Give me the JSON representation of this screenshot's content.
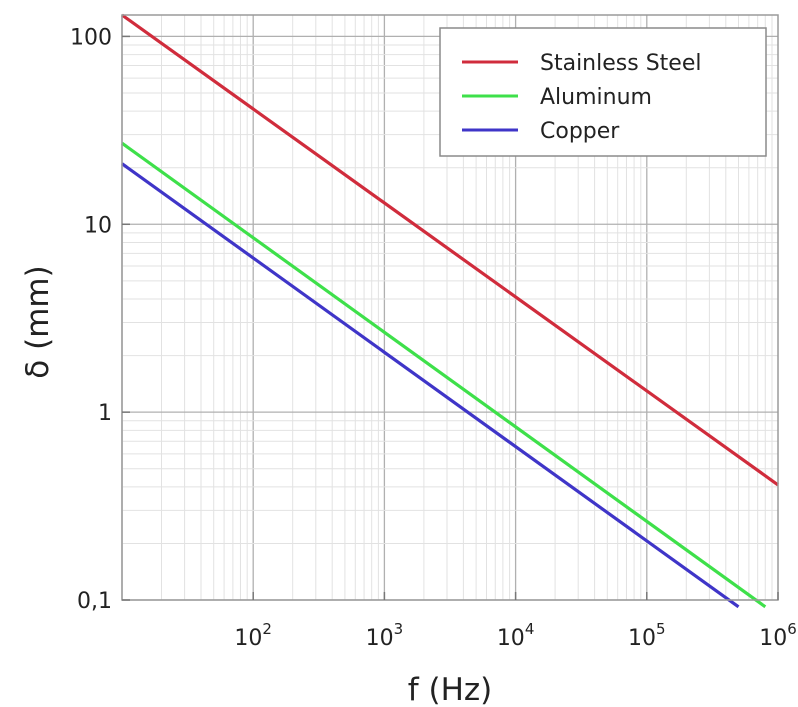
{
  "chart_data": {
    "type": "line",
    "xscale": "log",
    "yscale": "log",
    "xlim": [
      10,
      1000000
    ],
    "ylim": [
      0.1,
      130
    ],
    "xlabel": "f (Hz)",
    "ylabel": "δ (mm)",
    "grid": true,
    "legend_position": "top-right",
    "x_ticks": [
      {
        "value": 100,
        "base": "10",
        "exp": "2"
      },
      {
        "value": 1000,
        "base": "10",
        "exp": "3"
      },
      {
        "value": 10000,
        "base": "10",
        "exp": "4"
      },
      {
        "value": 100000,
        "base": "10",
        "exp": "5"
      },
      {
        "value": 1000000,
        "base": "10",
        "exp": "6"
      }
    ],
    "y_ticks": [
      {
        "value": 0.1,
        "label": "0,1"
      },
      {
        "value": 1,
        "label": "1"
      },
      {
        "value": 10,
        "label": "10"
      },
      {
        "value": 100,
        "label": "100"
      }
    ],
    "series": [
      {
        "name": "Stainless Steel",
        "color": "#d02c3c",
        "x": [
          10,
          1000000
        ],
        "y": [
          130,
          0.41
        ]
      },
      {
        "name": "Aluminum",
        "color": "#3ee04a",
        "x": [
          10,
          800000
        ],
        "y": [
          27,
          0.092
        ]
      },
      {
        "name": "Copper",
        "color": "#3f35c8",
        "x": [
          10,
          500000
        ],
        "y": [
          21,
          0.092
        ]
      }
    ]
  }
}
